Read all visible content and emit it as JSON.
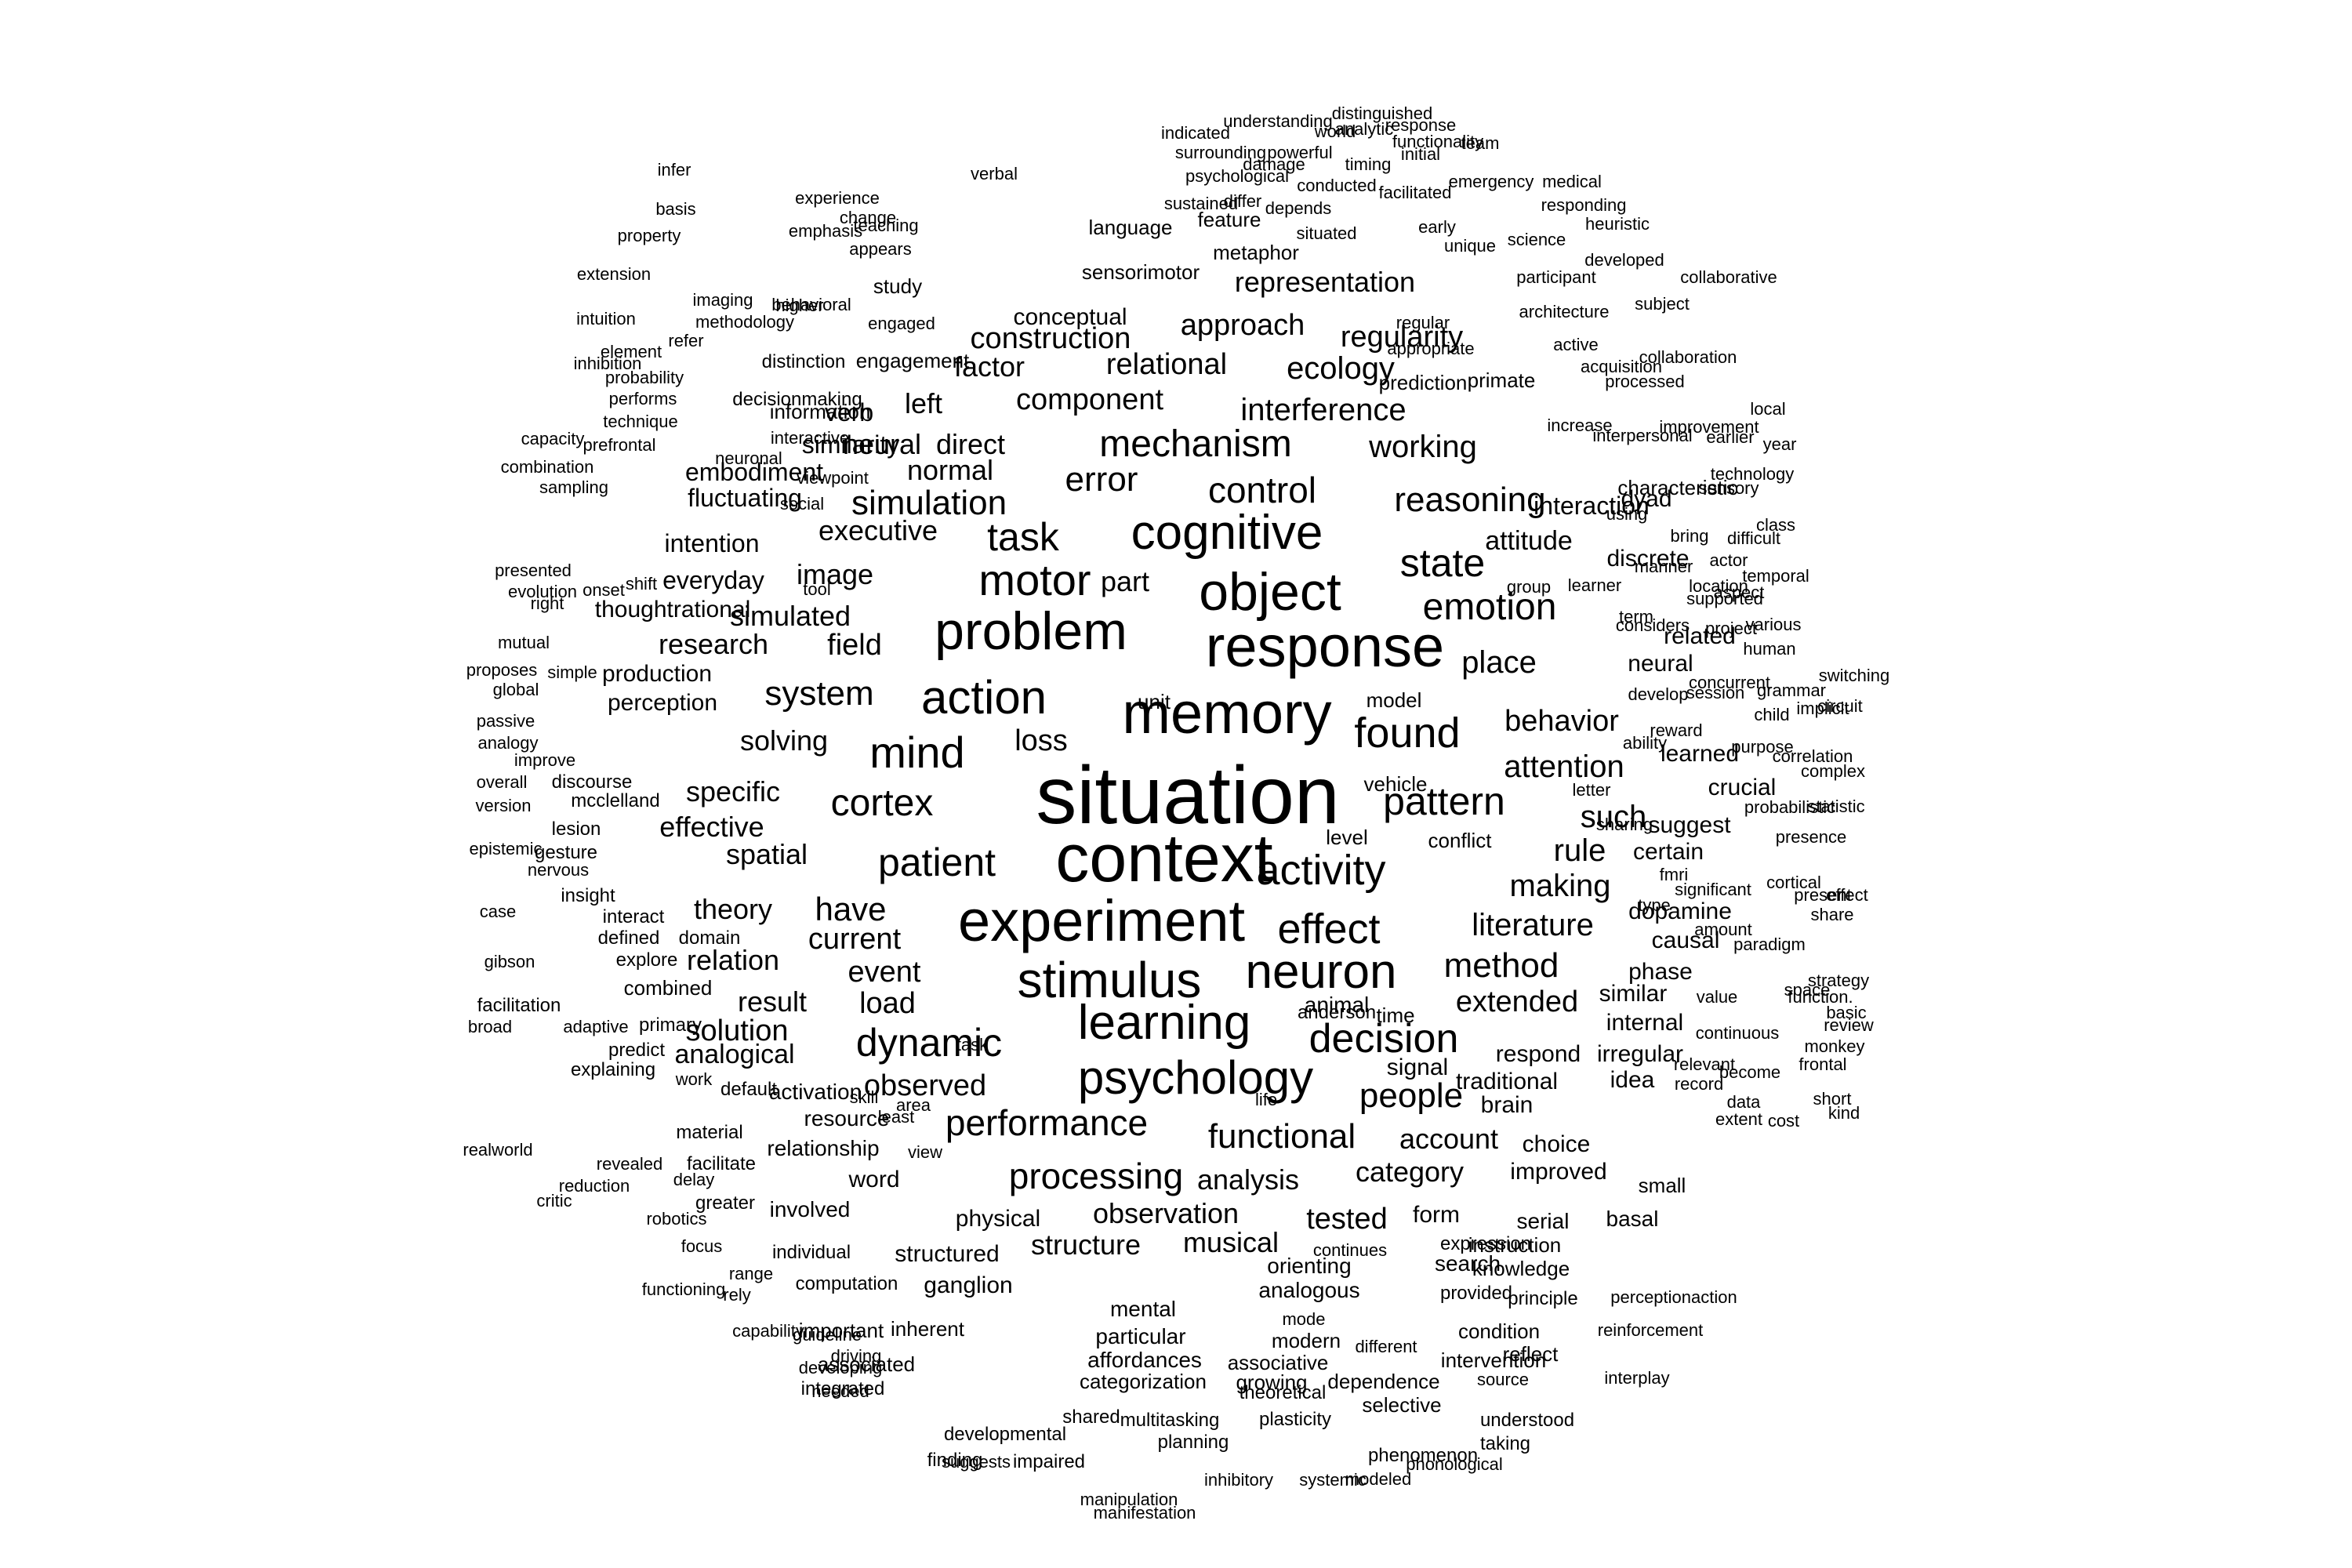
{
  "text_color": "#000000",
  "background_color": "#ffffff",
  "words": [
    "situation",
    "context",
    "experiment",
    "memory",
    "response",
    "object",
    "problem",
    "cognitive",
    "stimulus",
    "neuron",
    "learning",
    "psychology",
    "motor",
    "action",
    "activity",
    "mind",
    "found",
    "effect",
    "decision",
    "dynamic",
    "patient",
    "task",
    "state",
    "emotion",
    "pattern",
    "mechanism",
    "control",
    "reasoning",
    "error",
    "simulation",
    "performance",
    "processing",
    "functional",
    "cortex",
    "system",
    "people",
    "method",
    "literature",
    "making",
    "attention",
    "rule",
    "such",
    "behavior",
    "place",
    "have",
    "extended",
    "observed",
    "solution",
    "current",
    "event",
    "load",
    "result",
    "analysis",
    "observation",
    "structure",
    "musical",
    "tested",
    "category",
    "account",
    "part",
    "field",
    "loss",
    "executive",
    "image",
    "simulated",
    "research",
    "solving",
    "specific",
    "effective",
    "spatial",
    "theory",
    "relation",
    "analogical",
    "working",
    "interference",
    "ecology",
    "relational",
    "component",
    "approach",
    "regularity",
    "representation",
    "construction",
    "factor",
    "left",
    "direct",
    "neural",
    "verb",
    "normal",
    "embodiment",
    "fluctuating",
    "intention",
    "everyday",
    "thoughtrational",
    "production",
    "perception",
    "similarity",
    "attitude",
    "interaction",
    "neural",
    "related",
    "learned",
    "crucial",
    "suggest",
    "certain",
    "dopamine",
    "causal",
    "phase",
    "similar",
    "internal",
    "irregular",
    "idea",
    "respond",
    "traditional",
    "brain",
    "choice",
    "improved",
    "time",
    "signal",
    "animal",
    "level",
    "unit",
    "model",
    "vehicle",
    "conflict",
    "form",
    "serial",
    "basal",
    "small",
    "search",
    "knowledge",
    "instruction",
    "orienting",
    "analogous",
    "mental",
    "particular",
    "affordances",
    "categorization",
    "associative",
    "growing",
    "dependence",
    "intervention",
    "condition",
    "reflect",
    "structured",
    "ganglion",
    "physical",
    "involved",
    "word",
    "relationship",
    "resource",
    "activation",
    "default",
    "material",
    "facilitate",
    "greater",
    "individual",
    "computation",
    "important",
    "inherent",
    "associated",
    "integrated",
    "shared",
    "multitasking",
    "plasticity",
    "selective",
    "planning",
    "taking",
    "phenomenon",
    "phonological",
    "modeled",
    "finding",
    "developmental",
    "suggests",
    "impaired",
    "inhibitory",
    "systemic",
    "manipulation",
    "manifestation",
    "understood",
    "source",
    "interplay",
    "reinforcement",
    "perceptionaction",
    "principle",
    "provided",
    "expression",
    "continues",
    "modern",
    "mode",
    "different",
    "theoretical",
    "needed",
    "driving",
    "guideline",
    "developing",
    "capability",
    "range",
    "rely",
    "focus",
    "functioning",
    "robotics",
    "delay",
    "revealed",
    "reduction",
    "critic",
    "realworld",
    "work",
    "explaining",
    "predict",
    "primary",
    "adaptive",
    "broad",
    "facilitation",
    "gibson",
    "combined",
    "explore",
    "domain",
    "defined",
    "interact",
    "insight",
    "case",
    "nervous",
    "epistemic",
    "gesture",
    "lesion",
    "mcclelland",
    "discourse",
    "version",
    "overall",
    "improve",
    "analogy",
    "passive",
    "global",
    "proposes",
    "simple",
    "mutual",
    "right",
    "evolution",
    "onset",
    "shift",
    "presented",
    "sampling",
    "combination",
    "prefrontal",
    "capacity",
    "performs",
    "inhibition",
    "technique",
    "intuition",
    "probability",
    "element",
    "refer",
    "extension",
    "imaging",
    "methodology",
    "property",
    "basis",
    "infer",
    "behavioral",
    "higher",
    "verbal",
    "experience",
    "change",
    "teaching",
    "emphasis",
    "appears",
    "study",
    "engaged",
    "engagement",
    "distinction",
    "decisionmaking",
    "information",
    "interactive",
    "neuronal",
    "social",
    "viewpoint",
    "tool",
    "indicated",
    "surrounding",
    "powerful",
    "world",
    "understanding",
    "distinguished",
    "functionality",
    "response",
    "analytic",
    "initial",
    "damage",
    "timing",
    "emergency",
    "team",
    "psychological",
    "sustained",
    "differ",
    "conducted",
    "facilitated",
    "medical",
    "responding",
    "language",
    "feature",
    "depends",
    "situated",
    "unique",
    "heuristic",
    "early",
    "science",
    "metaphor",
    "sensorimotor",
    "participant",
    "developed",
    "subject",
    "conceptual",
    "regular",
    "architecture",
    "collaborative",
    "appropriate",
    "active",
    "collaboration",
    "acquisition",
    "prediction",
    "primate",
    "processed",
    "local",
    "improvement",
    "increase",
    "interpersonal",
    "earlier",
    "year",
    "characteristic",
    "dyad",
    "sensory",
    "technology",
    "using",
    "bring",
    "difficult",
    "discrete",
    "class",
    "manner",
    "location",
    "actor",
    "temporal",
    "supported",
    "group",
    "learner",
    "aspect",
    "term",
    "considers",
    "project",
    "various",
    "human",
    "grammar",
    "concurrent",
    "session",
    "develop",
    "implicit",
    "reward",
    "child",
    "switching",
    "circuit",
    "purpose",
    "correlation",
    "ability",
    "complex",
    "letter",
    "statistic",
    "sharing",
    "probabilistic",
    "presence",
    "cortical",
    "fmri",
    "effect",
    "present",
    "type",
    "share",
    "significant",
    "amount",
    "paradigm",
    "function.",
    "value",
    "space",
    "strategy",
    "basic",
    "continuous",
    "review",
    "relevant",
    "monkey",
    "record",
    "become",
    "frontal",
    "short",
    "data",
    "extent",
    "cost",
    "kind",
    "anderson",
    "life",
    "area",
    "task",
    "least",
    "skill",
    "view"
  ]
}
